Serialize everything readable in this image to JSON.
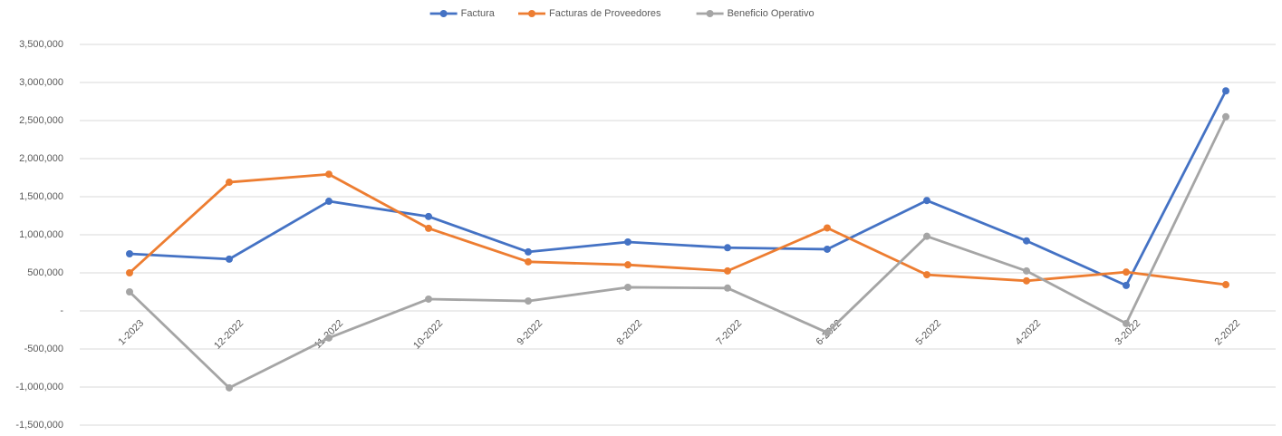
{
  "chart_data": {
    "type": "line",
    "categories": [
      "1-2023",
      "12-2022",
      "11-2022",
      "10-2022",
      "9-2022",
      "8-2022",
      "7-2022",
      "6-2022",
      "5-2022",
      "4-2022",
      "3-2022",
      "2-2022"
    ],
    "series": [
      {
        "name": "Factura",
        "color": "#4472c4",
        "values": [
          750000,
          680000,
          1440000,
          1240000,
          775000,
          905000,
          830000,
          810000,
          1450000,
          920000,
          335000,
          2890000
        ]
      },
      {
        "name": "Facturas de Proveedores",
        "color": "#ed7d31",
        "values": [
          500000,
          1690000,
          1795000,
          1085000,
          645000,
          605000,
          525000,
          1090000,
          475000,
          395000,
          510000,
          345000
        ]
      },
      {
        "name": "Beneficio Operativo",
        "color": "#a5a5a5",
        "values": [
          250000,
          -1010000,
          -355000,
          155000,
          130000,
          310000,
          300000,
          -285000,
          980000,
          525000,
          -165000,
          2550000
        ]
      }
    ],
    "ylim": [
      -1500000,
      3500000
    ],
    "yticks": [
      {
        "value": -1500000,
        "label": "-1,500,000"
      },
      {
        "value": -1000000,
        "label": "-1,000,000"
      },
      {
        "value": -500000,
        "label": "-500,000"
      },
      {
        "value": 0,
        "label": "-"
      },
      {
        "value": 500000,
        "label": "500,000"
      },
      {
        "value": 1000000,
        "label": "1,000,000"
      },
      {
        "value": 1500000,
        "label": "1,500,000"
      },
      {
        "value": 2000000,
        "label": "2,000,000"
      },
      {
        "value": 2500000,
        "label": "2,500,000"
      },
      {
        "value": 3000000,
        "label": "3,000,000"
      },
      {
        "value": 3500000,
        "label": "3,500,000"
      }
    ],
    "grid": true,
    "legend": "top"
  }
}
